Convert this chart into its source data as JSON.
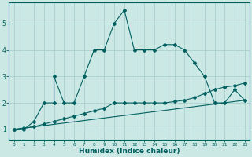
{
  "title": "",
  "xlabel": "Humidex (Indice chaleur)",
  "bg_color": "#cce8e5",
  "line_color": "#006060",
  "grid_color": "#aad0cc",
  "x_ticks": [
    0,
    1,
    2,
    3,
    4,
    5,
    6,
    7,
    8,
    9,
    10,
    11,
    12,
    13,
    14,
    15,
    16,
    17,
    18,
    19,
    20,
    21,
    22,
    23
  ],
  "y_ticks": [
    1,
    2,
    3,
    4,
    5
  ],
  "ylim": [
    0.6,
    5.8
  ],
  "xlim": [
    -0.5,
    23.5
  ],
  "series1_x": [
    0,
    1,
    2,
    3,
    4,
    4,
    5,
    6,
    7,
    8,
    9,
    10,
    11,
    12,
    13,
    14,
    15,
    16,
    17,
    18,
    19,
    20,
    21,
    22,
    23
  ],
  "series1_y": [
    1,
    1,
    1.3,
    2.0,
    2.0,
    3.0,
    2.0,
    2.0,
    3.0,
    4.0,
    4.0,
    5.0,
    5.5,
    4.0,
    4.0,
    4.0,
    4.2,
    4.2,
    4.0,
    3.5,
    3.0,
    2.0,
    2.0,
    2.5,
    2.1
  ],
  "series2_x": [
    0,
    1,
    2,
    3,
    4,
    5,
    6,
    7,
    8,
    9,
    10,
    11,
    12,
    13,
    14,
    15,
    16,
    17,
    18,
    19,
    20,
    21,
    22,
    23
  ],
  "series2_y": [
    1.0,
    1.05,
    1.1,
    1.2,
    1.3,
    1.4,
    1.5,
    1.6,
    1.7,
    1.8,
    2.0,
    2.0,
    2.0,
    2.0,
    2.0,
    2.0,
    2.05,
    2.1,
    2.2,
    2.35,
    2.5,
    2.6,
    2.65,
    2.75
  ],
  "series3_x": [
    0,
    23
  ],
  "series3_y": [
    1.0,
    2.1
  ]
}
